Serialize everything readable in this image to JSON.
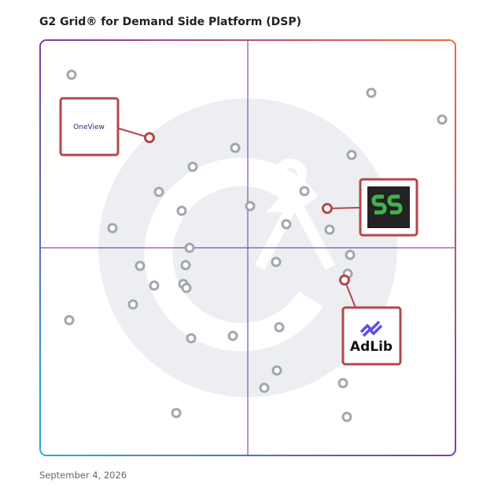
{
  "header": {
    "title": "G2 Grid® for Demand Side Platform (DSP)"
  },
  "highlighted": [
    {
      "label": "OneView"
    },
    {
      "label": "AdLib"
    }
  ],
  "footer": {
    "date": "September 4, 2026"
  }
}
